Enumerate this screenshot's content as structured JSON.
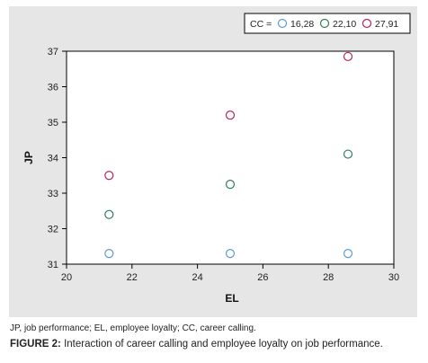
{
  "chart_data": {
    "type": "scatter",
    "xlabel": "EL",
    "ylabel": "JP",
    "xlim": [
      20,
      30
    ],
    "ylim": [
      31,
      37
    ],
    "xticks": [
      20,
      22,
      24,
      26,
      28,
      30
    ],
    "yticks": [
      31,
      32,
      33,
      34,
      35,
      36,
      37
    ],
    "grid": false,
    "legend_position": "top-right",
    "legend_title": "CC =",
    "series": [
      {
        "name": "16,28",
        "color": "#5b9bd5",
        "points": [
          {
            "x": 21.3,
            "y": 31.3
          },
          {
            "x": 25.0,
            "y": 31.3
          },
          {
            "x": 28.6,
            "y": 31.3
          }
        ]
      },
      {
        "name": "22,10",
        "color": "#2e7d5b",
        "points": [
          {
            "x": 21.3,
            "y": 32.4
          },
          {
            "x": 25.0,
            "y": 33.25
          },
          {
            "x": 28.6,
            "y": 34.1
          }
        ]
      },
      {
        "name": "27,91",
        "color": "#b3245e",
        "points": [
          {
            "x": 21.3,
            "y": 33.5
          },
          {
            "x": 25.0,
            "y": 35.2
          },
          {
            "x": 28.6,
            "y": 36.85
          }
        ]
      }
    ]
  },
  "footnote": "JP, job performance; EL, employee loyalty; CC, career calling.",
  "caption": {
    "label": "FIGURE 2:",
    "text": " Interaction of career calling and employee loyalty on job performance."
  }
}
